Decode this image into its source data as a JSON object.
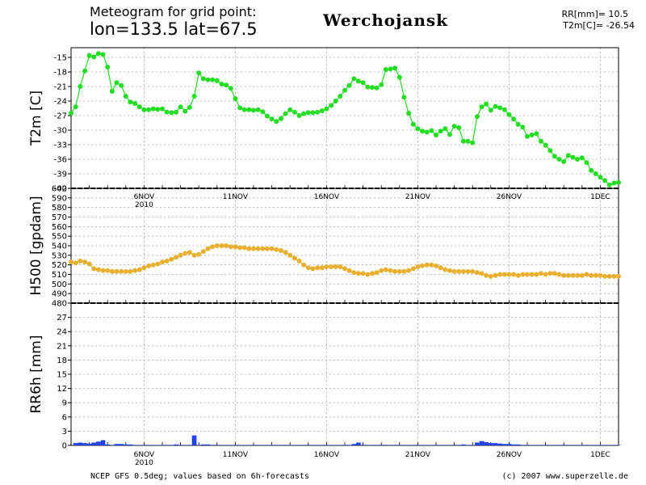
{
  "header": {
    "line1": "Meteogram for grid point:",
    "line2": "lon=133.5  lat=67.5",
    "station": "Werchojansk",
    "stat_rr": "RR[mm]= 10.5",
    "stat_t2m": "T2m[C]= -26.54"
  },
  "footer": {
    "left": "NCEP GFS 0.5deg; values based on 6h-forecasts",
    "right": "(c) 2007 www.superzelle.de"
  },
  "colors": {
    "t2m": "#22dd22",
    "h500": "#e8b030",
    "rr6h": "#2244ee",
    "grid": "#aaaaaa",
    "axis": "#000000"
  },
  "chart_data": [
    {
      "type": "line",
      "ylabel": "T2m [C]",
      "ylim": [
        -42,
        -13
      ],
      "yticks": [
        -15,
        -18,
        -21,
        -24,
        -27,
        -30,
        -33,
        -36,
        -39,
        -42
      ],
      "x_range_days": [
        0,
        30
      ],
      "x_ticks": [
        {
          "day": 4,
          "label": "6NOV",
          "sublabel": "2010"
        },
        {
          "day": 9,
          "label": "11NOV",
          "sublabel": ""
        },
        {
          "day": 14,
          "label": "16NOV",
          "sublabel": ""
        },
        {
          "day": 19,
          "label": "21NOV",
          "sublabel": ""
        },
        {
          "day": 24,
          "label": "26NOV",
          "sublabel": ""
        },
        {
          "day": 29,
          "label": "1DEC",
          "sublabel": ""
        }
      ],
      "grid": true,
      "series": [
        {
          "values": [
            -26.5,
            -25.2,
            -21,
            -17.8,
            -14.6,
            -14.9,
            -14.2,
            -14.4,
            -17,
            -22,
            -20.2,
            -20.8,
            -23,
            -24.2,
            -24.5,
            -25.2,
            -25.8,
            -25.8,
            -25.6,
            -25.7,
            -25.6,
            -26.3,
            -26.4,
            -26.3,
            -25.2,
            -26.1,
            -25.3,
            -23,
            -18.2,
            -19.4,
            -19.6,
            -19.6,
            -19.8,
            -20.5,
            -20.7,
            -21.4,
            -23.5,
            -25.4,
            -25.8,
            -25.8,
            -25.9,
            -25.8,
            -26.2,
            -27.1,
            -27.7,
            -28.2,
            -27.6,
            -26.6,
            -25.8,
            -26.3,
            -27,
            -26.6,
            -26.4,
            -26.4,
            -26.3,
            -26,
            -25.6,
            -24.9,
            -24,
            -23,
            -21.8,
            -20.8,
            -19.4,
            -19.9,
            -20.2,
            -21.1,
            -21.2,
            -21.3,
            -20.6,
            -17.5,
            -17.4,
            -17.2,
            -19.1,
            -23.2,
            -26.5,
            -28.8,
            -29.7,
            -30.2,
            -30.4,
            -30.1,
            -31,
            -30.2,
            -29.7,
            -30.9,
            -29.2,
            -29.5,
            -32.3,
            -32.3,
            -32.6,
            -27.2,
            -25.2,
            -24.6,
            -25.9,
            -25.1,
            -25.4,
            -25.8,
            -26.8,
            -27.7,
            -28.8,
            -29.4,
            -31.3,
            -31,
            -30.7,
            -32.3,
            -33.1,
            -34.2,
            -35.4,
            -36,
            -36.5,
            -35.2,
            -35.6,
            -36,
            -35.7,
            -36.7,
            -38.3,
            -39,
            -39.7,
            -40.4,
            -41.3,
            -40.9,
            -40.8
          ]
        }
      ]
    },
    {
      "type": "line",
      "ylabel": "H500 [gpdam]",
      "ylim": [
        480,
        600
      ],
      "yticks": [
        600,
        590,
        580,
        570,
        560,
        550,
        540,
        530,
        520,
        510,
        500,
        490,
        480
      ],
      "x_range_days": [
        0,
        30
      ],
      "grid": true,
      "series": [
        {
          "values": [
            523,
            522,
            524,
            523,
            521,
            516,
            515,
            514,
            514,
            513,
            513,
            513,
            513,
            513,
            514,
            515,
            517,
            519,
            520,
            521,
            523,
            524,
            526,
            528,
            530,
            532,
            533,
            530,
            531,
            534,
            537,
            539,
            540,
            540,
            540,
            539,
            539,
            538,
            538,
            537,
            537,
            537,
            537,
            537,
            537,
            536,
            535,
            533,
            530,
            527,
            524,
            520,
            517,
            516,
            517,
            517,
            518,
            518,
            518,
            518,
            516,
            514,
            512,
            511,
            511,
            510,
            511,
            512,
            514,
            515,
            514,
            513,
            513,
            513,
            514,
            516,
            518,
            519,
            520,
            520,
            519,
            517,
            515,
            514,
            513,
            513,
            513,
            513,
            513,
            512,
            511,
            509,
            508,
            509,
            510,
            510,
            510,
            510,
            509,
            510,
            510,
            510,
            510,
            511,
            510,
            511,
            511,
            510,
            509,
            509,
            509,
            509,
            509,
            510,
            509,
            509,
            509,
            508,
            508,
            508,
            508
          ]
        }
      ]
    },
    {
      "type": "bar",
      "ylabel": "RR6h [mm]",
      "ylim": [
        0,
        30
      ],
      "yticks": [
        0,
        3,
        6,
        9,
        12,
        15,
        18,
        21,
        24,
        27
      ],
      "x_range_days": [
        0,
        30
      ],
      "x_ticks": [
        {
          "day": 4,
          "label": "6NOV",
          "sublabel": "2010"
        },
        {
          "day": 9,
          "label": "11NOV",
          "sublabel": ""
        },
        {
          "day": 14,
          "label": "16NOV",
          "sublabel": ""
        },
        {
          "day": 19,
          "label": "21NOV",
          "sublabel": ""
        },
        {
          "day": 24,
          "label": "26NOV",
          "sublabel": ""
        },
        {
          "day": 29,
          "label": "1DEC",
          "sublabel": ""
        }
      ],
      "grid": true,
      "series": [
        {
          "values": [
            0,
            0.5,
            0.6,
            0.5,
            0.4,
            0.6,
            0.8,
            1.1,
            0.2,
            0.1,
            0.3,
            0.3,
            0.2,
            0.2,
            0.1,
            0.1,
            0.1,
            0.1,
            0.1,
            0.1,
            0.1,
            0.1,
            0.1,
            0.2,
            0.1,
            0.1,
            0.1,
            2.1,
            0.1,
            0.2,
            0.2,
            0.1,
            0.1,
            0.1,
            0.1,
            0.1,
            0.1,
            0.1,
            0.1,
            0.1,
            0.1,
            0.1,
            0.1,
            0.1,
            0.1,
            0.1,
            0.1,
            0.1,
            0.1,
            0.1,
            0.1,
            0.1,
            0.1,
            0.1,
            0.1,
            0.1,
            0.1,
            0.1,
            0.1,
            0.1,
            0.1,
            0.1,
            0.3,
            0.6,
            0.1,
            0.1,
            0.1,
            0.1,
            0.1,
            0.1,
            0.1,
            0.1,
            0.1,
            0.1,
            0.1,
            0.1,
            0.1,
            0.1,
            0.1,
            0.1,
            0.1,
            0.1,
            0.1,
            0.1,
            0.1,
            0.1,
            0.2,
            0.1,
            0.1,
            0.6,
            0.9,
            0.7,
            0.5,
            0.5,
            0.4,
            0.3,
            0.3,
            0.2,
            0.2,
            0.1,
            0.1,
            0.1,
            0.1,
            0.1,
            0.1,
            0.1,
            0.1,
            0.1,
            0.1,
            0.1,
            0.1,
            0.1,
            0.1,
            0.1,
            0.1,
            0.1,
            0.1,
            0.1,
            0.1,
            0.1,
            0.1
          ]
        }
      ]
    }
  ]
}
